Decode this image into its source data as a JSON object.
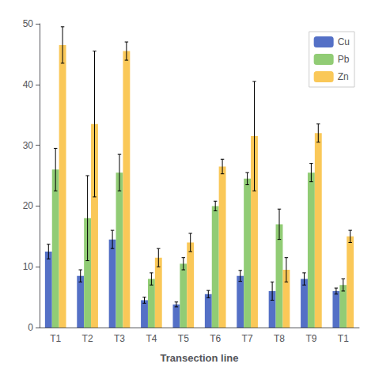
{
  "chart_data": {
    "type": "bar",
    "xlabel": "Transection line",
    "categories": [
      "T1",
      "T2",
      "T3",
      "T4",
      "T5",
      "T6",
      "T7",
      "T8",
      "T9",
      "T1"
    ],
    "series": [
      {
        "name": "Cu",
        "values": [
          12.5,
          8.5,
          14.5,
          4.5,
          3.8,
          5.5,
          8.5,
          6.0,
          8.0,
          6.0
        ],
        "errors": [
          1.2,
          1.0,
          1.5,
          0.5,
          0.4,
          0.6,
          0.9,
          1.5,
          1.0,
          0.5
        ]
      },
      {
        "name": "Pb",
        "values": [
          26.0,
          18.0,
          25.5,
          8.0,
          10.5,
          20.0,
          24.5,
          17.0,
          25.5,
          7.0
        ],
        "errors": [
          3.5,
          7.0,
          3.0,
          1.0,
          1.0,
          0.8,
          1.0,
          2.5,
          1.5,
          1.0
        ]
      },
      {
        "name": "Zn",
        "values": [
          46.5,
          33.5,
          45.5,
          11.5,
          14.0,
          26.5,
          31.5,
          9.5,
          32.0,
          15.0
        ],
        "errors": [
          3.0,
          12.0,
          1.5,
          1.5,
          1.5,
          1.2,
          9.0,
          2.0,
          1.5,
          1.0
        ]
      }
    ],
    "ylim": [
      0,
      50
    ],
    "yticks": [
      0,
      10,
      20,
      30,
      40,
      50
    ],
    "grid": false,
    "legend": "upper right"
  }
}
